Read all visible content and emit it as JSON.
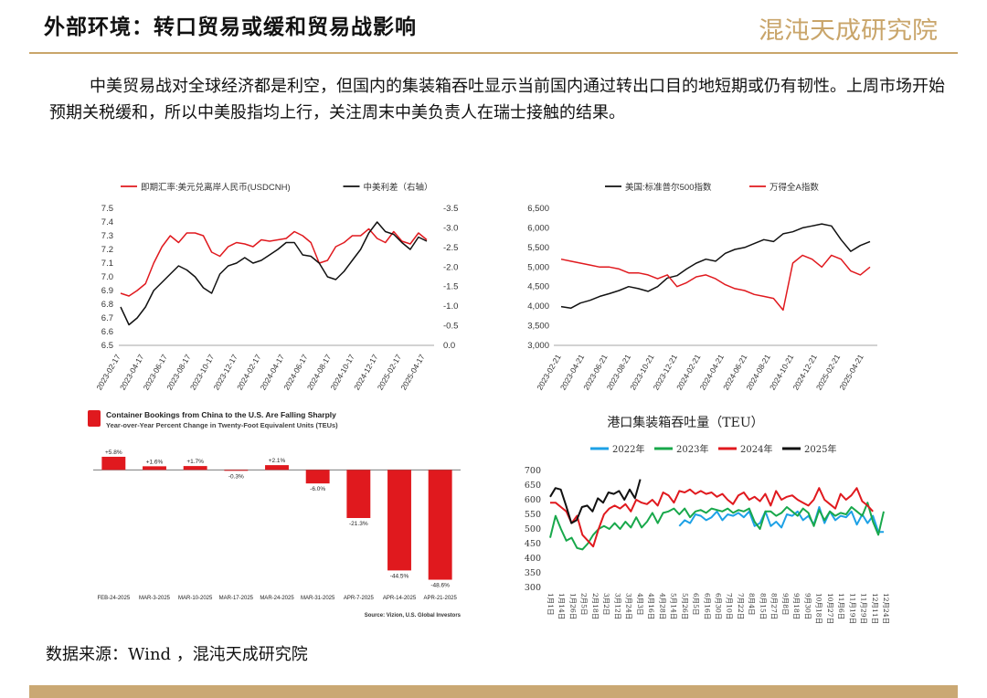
{
  "header": {
    "title": "外部环境：转口贸易或缓和贸易战影响",
    "logo_text": "混沌天成研究院"
  },
  "paragraph": "中美贸易战对全球经济都是利空，但国内的集装箱吞吐显示当前国内通过转出口目的地短期或仍有韧性。上周市场开始预期关税缓和，所以中美股指均上行，关注周末中美负责人在瑞士接触的结果。",
  "source": "数据来源：Wind ，混沌天成研究院",
  "colors": {
    "red": "#e0191e",
    "black": "#111111",
    "blue": "#1da1e6",
    "green": "#18a84b",
    "gold": "#caa873"
  },
  "chart_data": [
    {
      "type": "line",
      "legend": [
        "即期汇率:美元兑离岸人民币(USDCNH)",
        "中美利差（右轴）"
      ],
      "left_axis": {
        "ticks": [
          "6.5",
          "6.6",
          "6.7",
          "6.8",
          "6.9",
          "7.0",
          "7.1",
          "7.2",
          "7.3",
          "7.4",
          "7.5"
        ],
        "ylim": [
          6.5,
          7.5
        ]
      },
      "right_axis": {
        "ticks": [
          "0.0",
          "-0.5",
          "-1.0",
          "-1.5",
          "-2.0",
          "-2.5",
          "-3.0",
          "-3.5"
        ],
        "ylim": [
          0,
          -3.5
        ]
      },
      "x_ticks": [
        "2023-02-17",
        "2023-04-17",
        "2023-06-17",
        "2023-08-17",
        "2023-10-17",
        "2023-12-17",
        "2024-02-17",
        "2024-04-17",
        "2024-06-17",
        "2024-08-17",
        "2024-10-17",
        "2024-12-17",
        "2025-02-17",
        "2025-04-17"
      ],
      "series": [
        {
          "name": "即期汇率:美元兑离岸人民币(USDCNH)",
          "color": "red",
          "axis": "left",
          "values": [
            6.88,
            6.86,
            6.9,
            6.95,
            7.1,
            7.22,
            7.3,
            7.25,
            7.32,
            7.32,
            7.3,
            7.18,
            7.15,
            7.22,
            7.25,
            7.24,
            7.22,
            7.27,
            7.26,
            7.27,
            7.28,
            7.33,
            7.3,
            7.25,
            7.1,
            7.12,
            7.22,
            7.25,
            7.3,
            7.3,
            7.35,
            7.28,
            7.25,
            7.33,
            7.26,
            7.24,
            7.32,
            7.27
          ]
        },
        {
          "name": "中美利差（右轴）",
          "color": "black",
          "axis": "left",
          "values": [
            6.78,
            6.65,
            6.7,
            6.78,
            6.9,
            6.96,
            7.02,
            7.08,
            7.05,
            7.0,
            6.92,
            6.88,
            7.02,
            7.08,
            7.1,
            7.14,
            7.1,
            7.12,
            7.16,
            7.2,
            7.25,
            7.25,
            7.16,
            7.15,
            7.1,
            7.0,
            6.98,
            7.04,
            7.12,
            7.2,
            7.32,
            7.4,
            7.33,
            7.31,
            7.25,
            7.2,
            7.29,
            7.26
          ]
        }
      ]
    },
    {
      "type": "line",
      "legend": [
        "美国:标准普尔500指数",
        "万得全A指数"
      ],
      "y_ticks": [
        "3,000",
        "3,500",
        "4,000",
        "4,500",
        "5,000",
        "5,500",
        "6,000",
        "6,500"
      ],
      "ylim": [
        3000,
        6500
      ],
      "x_ticks": [
        "2023-02-21",
        "2023-04-21",
        "2023-06-21",
        "2023-08-21",
        "2023-10-21",
        "2023-12-21",
        "2024-02-21",
        "2024-04-21",
        "2024-06-21",
        "2024-08-21",
        "2024-10-21",
        "2024-12-21",
        "2025-02-21",
        "2025-04-21"
      ],
      "series": [
        {
          "name": "美国:标准普尔500指数",
          "color": "black",
          "values": [
            3990,
            3950,
            4080,
            4150,
            4250,
            4320,
            4400,
            4500,
            4450,
            4380,
            4500,
            4720,
            4780,
            4950,
            5100,
            5200,
            5150,
            5350,
            5450,
            5500,
            5600,
            5700,
            5650,
            5850,
            5900,
            6000,
            6050,
            6100,
            6050,
            5700,
            5400,
            5550,
            5650
          ]
        },
        {
          "name": "万得全A指数",
          "color": "red",
          "values": [
            5200,
            5150,
            5100,
            5050,
            5000,
            5000,
            4950,
            4850,
            4850,
            4800,
            4700,
            4800,
            4500,
            4600,
            4750,
            4800,
            4700,
            4550,
            4450,
            4400,
            4300,
            4250,
            4200,
            3900,
            5100,
            5300,
            5200,
            5000,
            5300,
            5200,
            4900,
            4800,
            5000
          ]
        }
      ]
    },
    {
      "type": "bar",
      "title": "Container Bookings from China to the U.S. Are Falling Sharply",
      "subtitle": "Year-over-Year Percent Change in Twenty-Foot Equivalent Units (TEUs)",
      "categories": [
        "FEB-24-2025",
        "MAR-3-2025",
        "MAR-10-2025",
        "MAR-17-2025",
        "MAR-24-2025",
        "MAR-31-2025",
        "APR-7-2025",
        "APR-14-2025",
        "APR-21-2025"
      ],
      "values": [
        5.8,
        1.6,
        1.7,
        -0.3,
        2.1,
        -6.0,
        -21.3,
        -44.5,
        -48.6
      ],
      "labels": [
        "+5.8%",
        "+1.6%",
        "+1.7%",
        "-0.3%",
        "+2.1%",
        "-6.0%",
        "-21.3%",
        "-44.5%",
        "-48.6%"
      ],
      "ylim": [
        -50,
        7
      ],
      "source_note": "Source: Vizion, U.S. Global Investors"
    },
    {
      "type": "line",
      "title": "港口集装箱吞吐量（TEU）",
      "legend": [
        "2022年",
        "2023年",
        "2024年",
        "2025年"
      ],
      "y_ticks": [
        "300",
        "350",
        "400",
        "450",
        "500",
        "550",
        "600",
        "650",
        "700"
      ],
      "ylim": [
        300,
        700
      ],
      "x_ticks": [
        "1月1日",
        "1月14日",
        "1月26日",
        "2月5日",
        "2月18日",
        "3月2日",
        "3月12日",
        "3月24日",
        "4月3日",
        "4月16日",
        "4月28日",
        "5月14日",
        "5月26日",
        "6月5日",
        "6月16日",
        "6月30日",
        "7月10日",
        "7月22日",
        "8月4日",
        "8月15日",
        "8月27日",
        "9月8日",
        "9月18日",
        "9月30日",
        "10月18日",
        "10月27日",
        "11月6日",
        "11月19日",
        "11月29日",
        "12月11日",
        "12月24日"
      ],
      "series": [
        {
          "name": "2022年",
          "color": "blue",
          "values": [
            null,
            null,
            null,
            null,
            null,
            null,
            null,
            null,
            null,
            null,
            null,
            null,
            null,
            null,
            null,
            null,
            null,
            null,
            null,
            null,
            null,
            null,
            null,
            null,
            510,
            530,
            520,
            550,
            545,
            530,
            540,
            560,
            530,
            550,
            545,
            555,
            540,
            560,
            510,
            520,
            560,
            510,
            525,
            505,
            550,
            545,
            560,
            530,
            545,
            515,
            575,
            520,
            560,
            530,
            545,
            540,
            560,
            515,
            550,
            520,
            545,
            490,
            490
          ]
        },
        {
          "name": "2023年",
          "color": "green",
          "values": [
            470,
            545,
            500,
            460,
            470,
            435,
            430,
            450,
            480,
            500,
            510,
            500,
            520,
            500,
            525,
            505,
            540,
            505,
            525,
            555,
            520,
            555,
            560,
            570,
            550,
            570,
            540,
            560,
            565,
            555,
            570,
            565,
            560,
            570,
            555,
            565,
            560,
            570,
            525,
            500,
            560,
            560,
            545,
            555,
            575,
            560,
            545,
            570,
            555,
            510,
            565,
            530,
            560,
            545,
            555,
            550,
            575,
            560,
            545,
            590,
            525,
            480,
            560
          ]
        },
        {
          "name": "2024年",
          "color": "red",
          "values": [
            590,
            590,
            575,
            560,
            520,
            545,
            480,
            460,
            440,
            500,
            550,
            570,
            580,
            570,
            585,
            560,
            600,
            590,
            585,
            600,
            580,
            625,
            615,
            590,
            630,
            625,
            635,
            620,
            630,
            620,
            625,
            610,
            620,
            600,
            585,
            615,
            625,
            600,
            610,
            595,
            620,
            580,
            630,
            600,
            610,
            615,
            600,
            590,
            580,
            600,
            640,
            600,
            585,
            570,
            620,
            600,
            615,
            640,
            595,
            580,
            560
          ]
        },
        {
          "name": "2025年",
          "color": "black",
          "values": [
            610,
            640,
            635,
            580,
            520,
            530,
            575,
            580,
            560,
            605,
            590,
            625,
            620,
            630,
            600,
            635,
            605,
            670
          ]
        }
      ]
    }
  ]
}
